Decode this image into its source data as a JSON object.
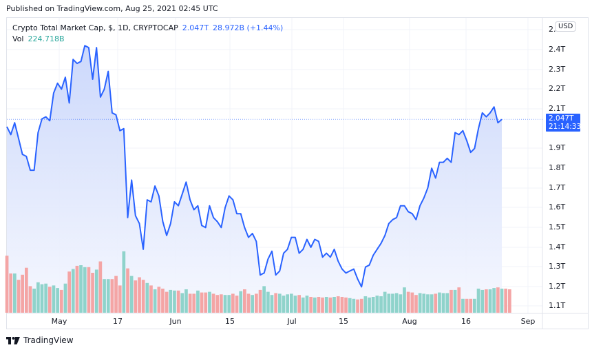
{
  "header": {
    "published": "Published on TradingView.com, Aug 25, 2021 02:45 UTC"
  },
  "legend": {
    "symbol": "Crypto Total Market Cap, $, 1D, CRYPTOCAP",
    "last": "2.047T",
    "change": "28.972B (+1.44%)",
    "vol_label": "Vol",
    "vol_value": "224.718B"
  },
  "currency_button": "USD",
  "price_tag": {
    "price": "2.047T",
    "countdown": "21:14:33"
  },
  "y_axis": [
    "2.",
    "2.4T",
    "2.3T",
    "2.2T",
    "2.1T",
    "1.9T",
    "1.8T",
    "1.7T",
    "1.6T",
    "1.5T",
    "1.4T",
    "1.3T",
    "1.2T",
    "1.1T"
  ],
  "x_axis": [
    "May",
    "17",
    "Jun",
    "15",
    "Jul",
    "15",
    "Aug",
    "16",
    "Sep"
  ],
  "footer": {
    "brand": "TradingView"
  },
  "colors": {
    "line": "#2962ff",
    "area_top": "#c9d6fb",
    "area_bottom": "#f5f7fe",
    "vol_up": "#8fd3cb",
    "vol_down": "#f4a5a5",
    "grid": "#f0f3fa"
  },
  "chart_data": {
    "type": "area",
    "title": "Crypto Total Market Cap, $, 1D, CRYPTOCAP",
    "xlabel": "",
    "ylabel": "USD",
    "ylim": [
      1.07,
      2.5
    ],
    "grid": true,
    "legend_position": "top-left",
    "x_tick_labels": [
      "May",
      "17",
      "Jun",
      "15",
      "Jul",
      "15",
      "Aug",
      "16",
      "Sep"
    ],
    "y_tick_labels": [
      "1.1T",
      "1.2T",
      "1.3T",
      "1.4T",
      "1.5T",
      "1.6T",
      "1.7T",
      "1.8T",
      "1.9T",
      "2.1T",
      "2.2T",
      "2.3T",
      "2.4T"
    ],
    "last_value": 2.047,
    "series": [
      {
        "name": "Total Market Cap (T USD)",
        "values": [
          2.01,
          1.97,
          2.03,
          1.95,
          1.87,
          1.86,
          1.79,
          1.79,
          1.98,
          2.05,
          2.06,
          2.04,
          2.18,
          2.23,
          2.2,
          2.26,
          2.13,
          2.35,
          2.33,
          2.34,
          2.42,
          2.41,
          2.25,
          2.41,
          2.16,
          2.2,
          2.29,
          2.08,
          2.07,
          1.99,
          2.0,
          1.55,
          1.74,
          1.56,
          1.52,
          1.39,
          1.64,
          1.63,
          1.71,
          1.66,
          1.53,
          1.46,
          1.52,
          1.63,
          1.61,
          1.67,
          1.73,
          1.64,
          1.59,
          1.61,
          1.51,
          1.5,
          1.61,
          1.55,
          1.53,
          1.5,
          1.6,
          1.66,
          1.64,
          1.57,
          1.57,
          1.5,
          1.45,
          1.47,
          1.43,
          1.26,
          1.27,
          1.34,
          1.38,
          1.26,
          1.28,
          1.37,
          1.39,
          1.45,
          1.45,
          1.37,
          1.39,
          1.44,
          1.4,
          1.44,
          1.43,
          1.35,
          1.37,
          1.35,
          1.39,
          1.33,
          1.29,
          1.27,
          1.28,
          1.29,
          1.24,
          1.2,
          1.3,
          1.31,
          1.36,
          1.39,
          1.42,
          1.46,
          1.52,
          1.54,
          1.55,
          1.61,
          1.61,
          1.58,
          1.57,
          1.54,
          1.61,
          1.65,
          1.7,
          1.8,
          1.75,
          1.83,
          1.83,
          1.85,
          1.83,
          1.98,
          1.97,
          1.99,
          1.94,
          1.88,
          1.9,
          2.0,
          2.08,
          2.06,
          2.08,
          2.11,
          2.03,
          2.047
        ]
      },
      {
        "name": "Volume (relative)",
        "values": [
          0.9,
          0.62,
          0.62,
          0.52,
          0.6,
          0.71,
          0.42,
          0.38,
          0.48,
          0.45,
          0.46,
          0.41,
          0.43,
          0.39,
          0.36,
          0.46,
          0.65,
          0.69,
          0.74,
          0.75,
          0.72,
          0.72,
          0.63,
          0.68,
          0.81,
          0.53,
          0.53,
          0.53,
          0.58,
          0.43,
          0.97,
          0.7,
          0.58,
          0.51,
          0.56,
          0.52,
          0.47,
          0.43,
          0.37,
          0.41,
          0.38,
          0.33,
          0.36,
          0.35,
          0.35,
          0.31,
          0.37,
          0.3,
          0.3,
          0.35,
          0.32,
          0.32,
          0.33,
          0.3,
          0.28,
          0.29,
          0.28,
          0.28,
          0.3,
          0.27,
          0.34,
          0.37,
          0.3,
          0.28,
          0.3,
          0.36,
          0.42,
          0.33,
          0.28,
          0.31,
          0.3,
          0.27,
          0.29,
          0.3,
          0.27,
          0.28,
          0.24,
          0.27,
          0.25,
          0.24,
          0.25,
          0.24,
          0.25,
          0.24,
          0.25,
          0.26,
          0.25,
          0.24,
          0.23,
          0.22,
          0.21,
          0.22,
          0.26,
          0.24,
          0.25,
          0.27,
          0.26,
          0.33,
          0.3,
          0.3,
          0.31,
          0.29,
          0.4,
          0.33,
          0.32,
          0.28,
          0.31,
          0.3,
          0.29,
          0.29,
          0.3,
          0.32,
          0.31,
          0.31,
          0.36,
          0.36,
          0.4,
          0.22,
          0.22,
          0.22,
          0.22,
          0.38,
          0.36,
          0.37,
          0.37,
          0.39,
          0.4,
          0.38,
          0.38,
          0.37
        ]
      }
    ]
  }
}
